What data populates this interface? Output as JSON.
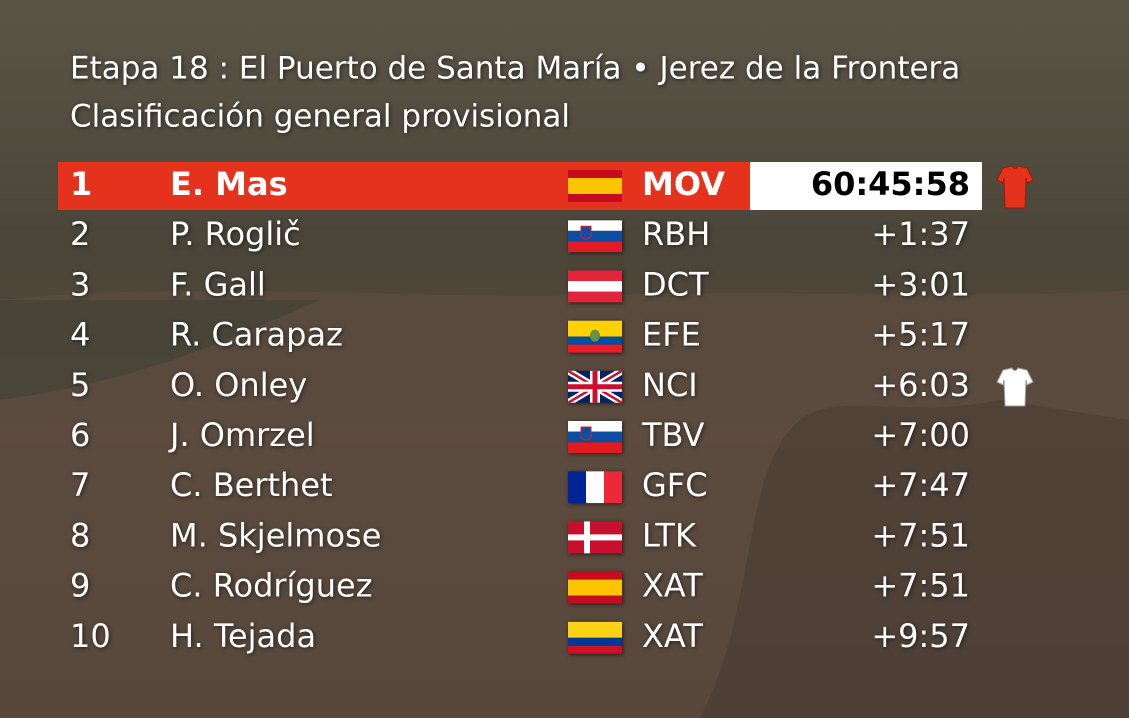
{
  "header": {
    "title": "Etapa 18 : El Puerto de Santa María • Jerez de la Frontera",
    "subtitle": "Clasificación general provisional"
  },
  "table": {
    "rows": [
      [
        "1",
        "E. Mas",
        "MOV",
        "60:45:58"
      ],
      [
        "2",
        "P. Roglič",
        "RBH",
        "+1:37"
      ],
      [
        "3",
        "F. Gall",
        "DCT",
        "+3:01"
      ],
      [
        "4",
        "R. Carapaz",
        "EFE",
        "+5:17"
      ],
      [
        "5",
        "O. Onley",
        "NCI",
        "+6:03"
      ],
      [
        "6",
        "J. Omrzel",
        "TBV",
        "+7:00"
      ],
      [
        "7",
        "C. Berthet",
        "GFC",
        "+7:47"
      ],
      [
        "8",
        "M. Skjelmose",
        "LTK",
        "+7:51"
      ],
      [
        "9",
        "C. Rodríguez",
        "XAT",
        "+7:51"
      ],
      [
        "10",
        "H. Tejada",
        "XAT",
        "+9:57"
      ]
    ]
  }
}
